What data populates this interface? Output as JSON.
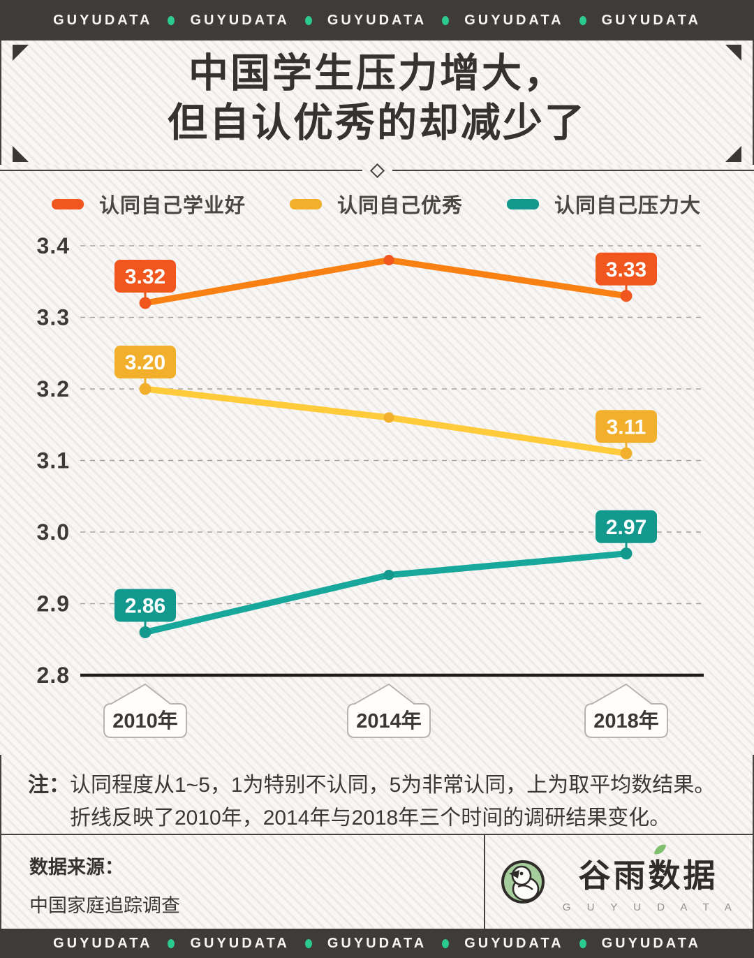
{
  "brand_bar": {
    "label": "GUYUDATA",
    "repeat": 5,
    "dot_color": "#2BCB8E",
    "bg_color": "#3F3B38"
  },
  "title": {
    "line1": "中国学生压力增大，",
    "line2": "但自认优秀的却减少了"
  },
  "chart_data": {
    "type": "line",
    "categories": [
      "2010年",
      "2014年",
      "2018年"
    ],
    "series": [
      {
        "name": "认同自己学业好",
        "line_color": "#F98113",
        "accent_color": "#F0561E",
        "values": [
          3.32,
          3.38,
          3.33
        ],
        "point_labels": [
          "3.32",
          null,
          "3.33"
        ]
      },
      {
        "name": "认同自己优秀",
        "line_color": "#FFCB3A",
        "accent_color": "#F2AF2B",
        "values": [
          3.2,
          3.16,
          3.11
        ],
        "point_labels": [
          "3.20",
          null,
          "3.11"
        ]
      },
      {
        "name": "认同自己压力大",
        "line_color": "#17A79B",
        "accent_color": "#12988D",
        "values": [
          2.86,
          2.94,
          2.97
        ],
        "point_labels": [
          "2.86",
          null,
          "2.97"
        ]
      }
    ],
    "ylim": [
      2.8,
      3.4
    ],
    "yticks": [
      "3.4",
      "3.3",
      "3.2",
      "3.1",
      "3.0",
      "2.9",
      "2.8"
    ],
    "grid": "dashed horizontal gridlines, solid baseline at 2.8",
    "legend_position": "top"
  },
  "note": {
    "prefix": "注：",
    "line1": "认同程度从1~5，1为特别不认同，5为非常认同，上为取平均数结果。",
    "line2": "折线反映了2010年，2014年与2018年三个时间的调研结果变化。"
  },
  "footer": {
    "source_label": "数据来源：",
    "source_value": "中国家庭追踪调查",
    "logo_cn": "谷雨数据",
    "logo_en": "G U Y U D A T A"
  }
}
